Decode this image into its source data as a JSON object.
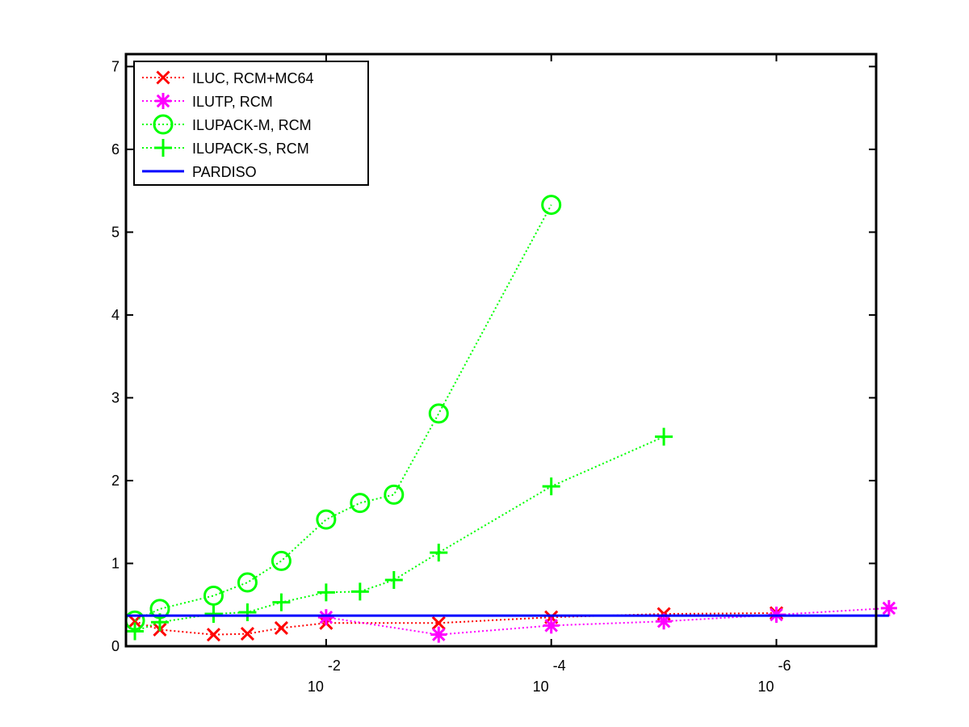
{
  "chart_data": {
    "type": "line",
    "title": "",
    "xlabel": "",
    "ylabel": "",
    "x_scale": "log-decreasing",
    "xlim": [
      0.6,
      1.3e-07
    ],
    "ylim": [
      0,
      7.15
    ],
    "yticks": [
      0,
      1,
      2,
      3,
      4,
      5,
      6,
      7
    ],
    "xticks": [
      {
        "value": 0.01,
        "base": "10",
        "exp": "-2"
      },
      {
        "value": 0.0001,
        "base": "10",
        "exp": "-4"
      },
      {
        "value": 1e-06,
        "base": "10",
        "exp": "-6"
      }
    ],
    "grid": false,
    "legend_position": "top-left",
    "series": [
      {
        "name": "ILUC, RCM+MC64",
        "color": "#ff0000",
        "marker": "x",
        "linestyle": "dotted",
        "x": [
          0.5,
          0.3,
          0.1,
          0.05,
          0.025,
          0.01,
          0.001,
          0.0001,
          1e-05,
          1e-06
        ],
        "y": [
          0.3,
          0.2,
          0.14,
          0.15,
          0.22,
          0.28,
          0.28,
          0.35,
          0.39,
          0.4
        ]
      },
      {
        "name": "ILUTP, RCM",
        "color": "#ff00ff",
        "marker": "star",
        "linestyle": "dotted",
        "x": [
          0.01,
          0.001,
          0.0001,
          1e-05,
          1e-06,
          1e-07
        ],
        "y": [
          0.35,
          0.14,
          0.25,
          0.3,
          0.38,
          0.46
        ]
      },
      {
        "name": "ILUPACK-M, RCM",
        "color": "#00ff00",
        "marker": "circle",
        "linestyle": "dotted",
        "x": [
          0.5,
          0.3,
          0.1,
          0.05,
          0.025,
          0.01,
          0.005,
          0.0025,
          0.001,
          0.0001
        ],
        "y": [
          0.31,
          0.45,
          0.61,
          0.77,
          1.03,
          1.53,
          1.73,
          1.83,
          2.81,
          5.33
        ]
      },
      {
        "name": "ILUPACK-S, RCM",
        "color": "#00ff00",
        "marker": "plus",
        "linestyle": "dotted",
        "x": [
          0.5,
          0.3,
          0.1,
          0.05,
          0.025,
          0.01,
          0.005,
          0.0025,
          0.001,
          0.0001,
          1e-05
        ],
        "y": [
          0.18,
          0.29,
          0.39,
          0.41,
          0.53,
          0.65,
          0.66,
          0.8,
          1.13,
          1.93,
          2.53
        ]
      },
      {
        "name": "PARDISO",
        "color": "#0000ff",
        "marker": "none",
        "linestyle": "solid",
        "x": [
          0.6,
          1e-07
        ],
        "y": [
          0.37,
          0.37
        ]
      }
    ]
  }
}
